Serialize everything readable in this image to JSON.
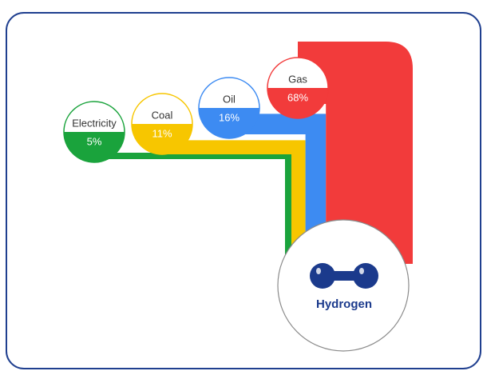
{
  "flow": {
    "categories": [
      "Electricity",
      "Coal",
      "Oil",
      "Gas"
    ],
    "values": [
      5,
      11,
      16,
      68
    ],
    "value_labels": [
      "5%",
      "11%",
      "16%",
      "68%"
    ],
    "colors": [
      "#1aa33c",
      "#f7c600",
      "#3d8bf2",
      "#f23b3b"
    ],
    "target": "Hydrogen"
  }
}
